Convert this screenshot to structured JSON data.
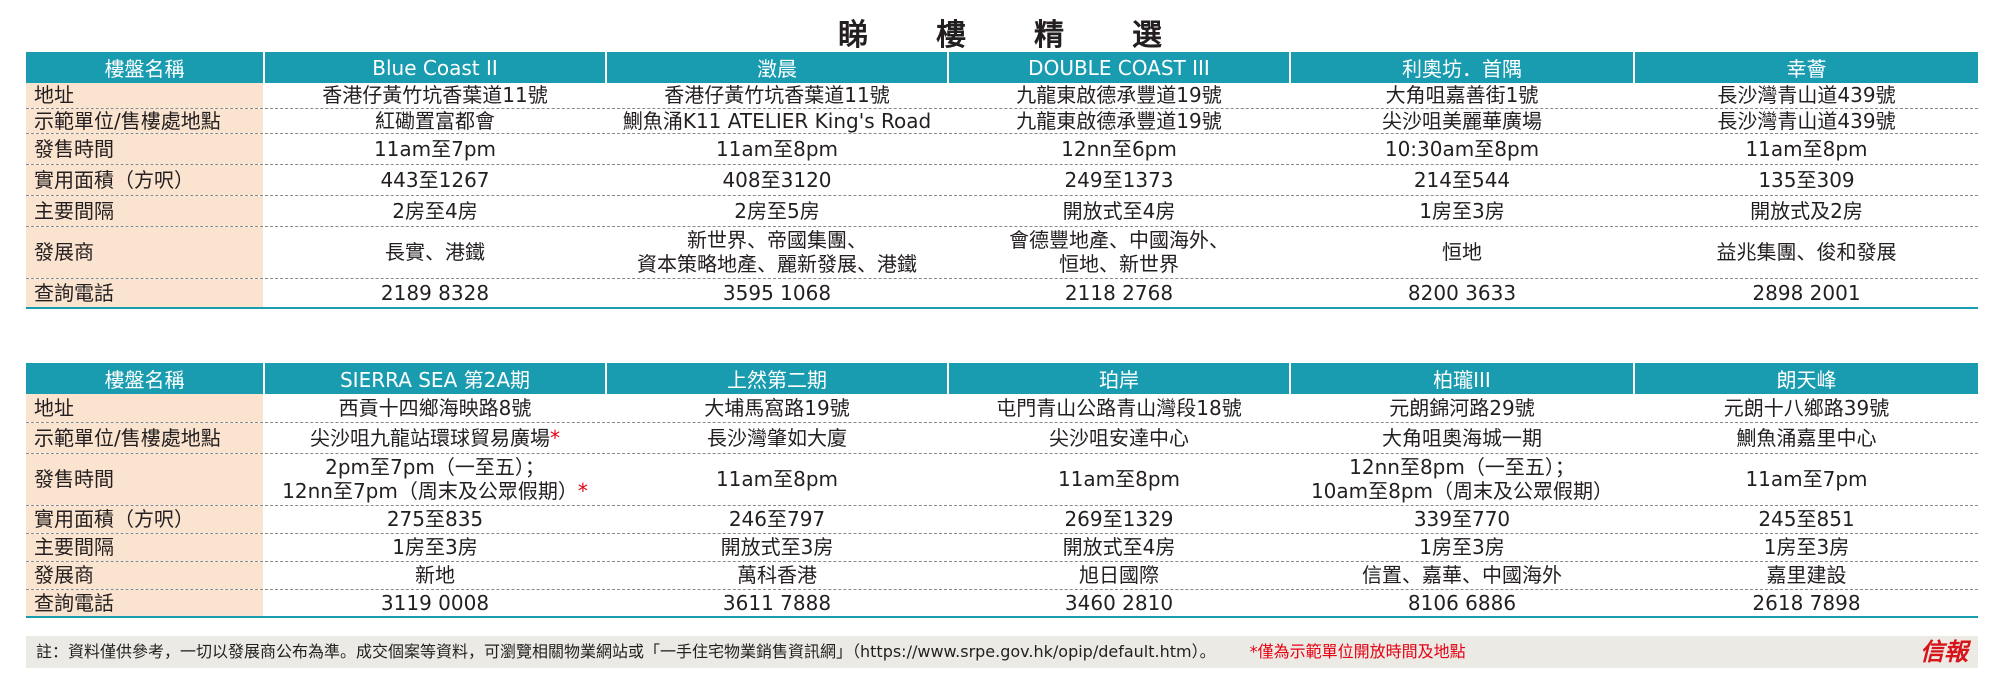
{
  "title": "睇樓精選",
  "title_chars": [
    "睇",
    "樓",
    "精",
    "選"
  ],
  "tables": [
    {
      "header_label": "樓盤名稱",
      "projects": [
        "Blue Coast II",
        "澂晨",
        "DOUBLE COAST III",
        "利奧坊．首隅",
        "幸薈"
      ],
      "rows": [
        {
          "label": "地址",
          "cells": [
            "香港仔黃竹坑香葉道11號",
            "香港仔黃竹坑香葉道11號",
            "九龍東啟德承豐道19號",
            "大角咀嘉善街1號",
            "長沙灣青山道439號"
          ]
        },
        {
          "label": "示範單位/售樓處地點",
          "cells": [
            "紅磡置富都會",
            "鰂魚涌K11 ATELIER King's Road",
            "九龍東啟德承豐道19號",
            "尖沙咀美麗華廣場",
            "長沙灣青山道439號"
          ]
        },
        {
          "label": "發售時間",
          "cells": [
            "11am至7pm",
            "11am至8pm",
            "12nn至6pm",
            "10:30am至8pm",
            "11am至8pm"
          ]
        },
        {
          "label": "實用面積（方呎）",
          "cells": [
            "443至1267",
            "408至3120",
            "249至1373",
            "214至544",
            "135至309"
          ]
        },
        {
          "label": "主要間隔",
          "cells": [
            "2房至4房",
            "2房至5房",
            "開放式至4房",
            "1房至3房",
            "開放式及2房"
          ]
        },
        {
          "label": "發展商",
          "cells": [
            "長實、港鐵",
            "新世界、帝國集團、\n資本策略地產、麗新發展、港鐵",
            "會德豐地產、中國海外、\n恒地、新世界",
            "恒地",
            "益兆集團、俊和發展"
          ]
        },
        {
          "label": "查詢電話",
          "cells": [
            "2189 8328",
            "3595 1068",
            "2118 2768",
            "8200 3633",
            "2898 2001"
          ]
        }
      ]
    },
    {
      "header_label": "樓盤名稱",
      "projects": [
        "SIERRA SEA 第2A期",
        "上然第二期",
        "珀岸",
        "柏瓏III",
        "朗天峰"
      ],
      "rows": [
        {
          "label": "地址",
          "cells": [
            "西貢十四鄉海映路8號",
            "大埔馬窩路19號",
            "屯門青山公路青山灣段18號",
            "元朗錦河路29號",
            "元朗十八鄉路39號"
          ]
        },
        {
          "label": "示範單位/售樓處地點",
          "cells": [
            "尖沙咀九龍站環球貿易廣場",
            "長沙灣肇如大廈",
            "尖沙咀安達中心",
            "大角咀奧海城一期",
            "鰂魚涌嘉里中心"
          ]
        },
        {
          "label": "發售時間",
          "cells": [
            "2pm至7pm（一至五）；\n12nn至7pm（周末及公眾假期）",
            "11am至8pm",
            "11am至8pm",
            "12nn至8pm（一至五）；\n10am至8pm（周末及公眾假期）",
            "11am至7pm"
          ]
        },
        {
          "label": "實用面積（方呎）",
          "cells": [
            "275至835",
            "246至797",
            "269至1329",
            "339至770",
            "245至851"
          ]
        },
        {
          "label": "主要間隔",
          "cells": [
            "1房至3房",
            "開放式至3房",
            "開放式至4房",
            "1房至3房",
            "1房至3房"
          ]
        },
        {
          "label": "發展商",
          "cells": [
            "新地",
            "萬科香港",
            "旭日國際",
            "信置、嘉華、中國海外",
            "嘉里建設"
          ]
        },
        {
          "label": "查詢電話",
          "cells": [
            "3119 0008",
            "3611 7888",
            "3460 2810",
            "8106 6886",
            "2618 7898"
          ]
        }
      ]
    }
  ],
  "asterisk": "*",
  "note": "註：資料僅供參考，一切以發展商公布為準。成交個案等資料，可瀏覽相關物業網站或「一手住宅物業銷售資訊網」（https://www.srpe.gov.hk/opip/default.htm）。",
  "asterisk_note": "*僅為示範單位開放時間及地點",
  "logo": "信報",
  "colors": {
    "header_bg": "#1a9cb0",
    "label_bg": "#fbe4cf",
    "asterisk": "#e60012",
    "logo": "#d7141a"
  }
}
